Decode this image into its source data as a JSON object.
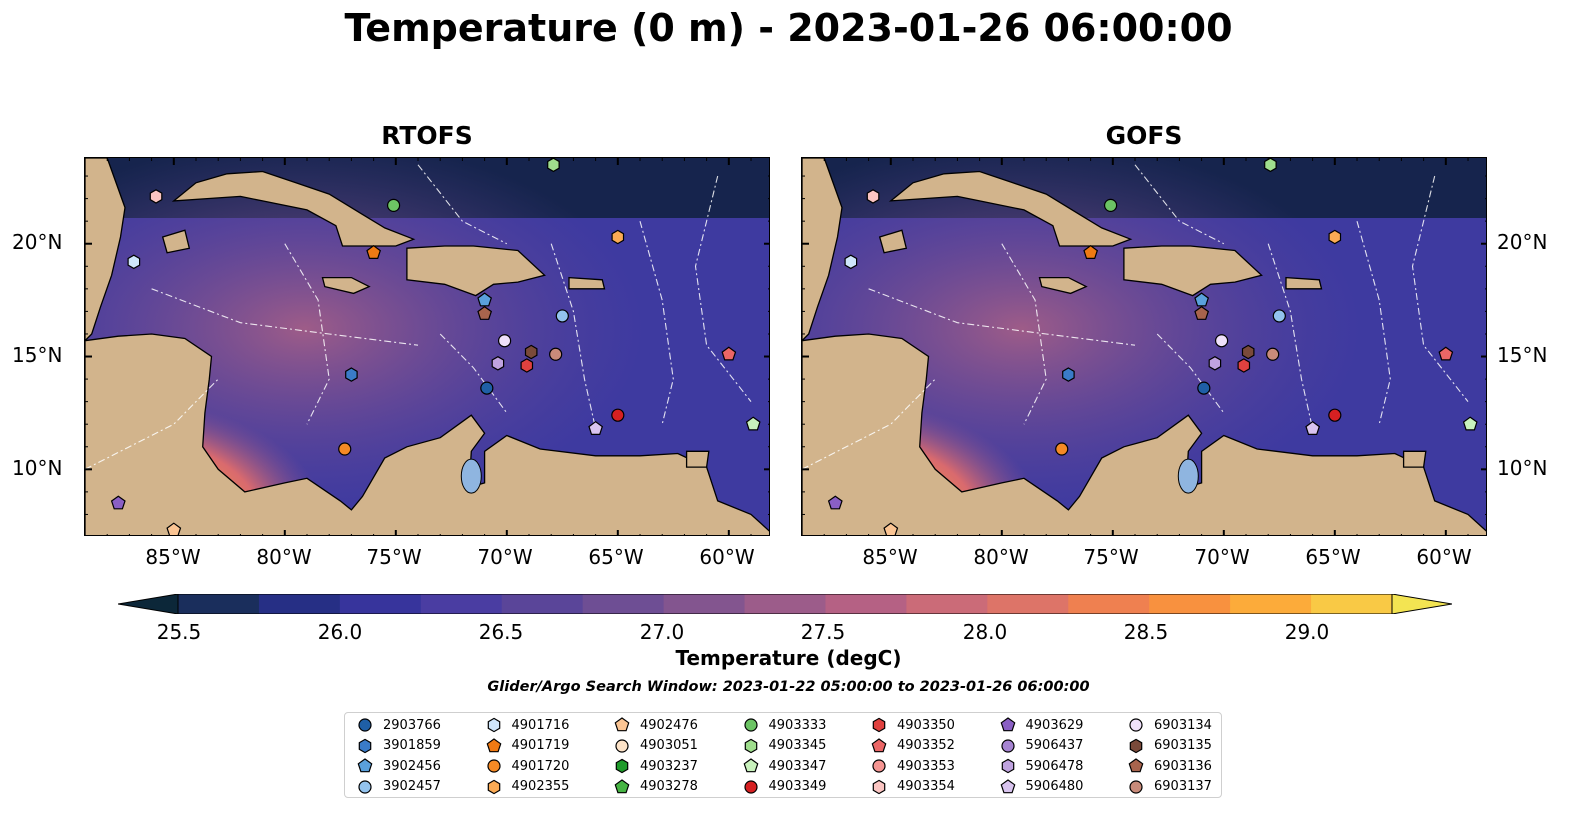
{
  "title": "Temperature (0 m) - 2023-01-26 06:00:00",
  "panels": [
    {
      "title": "RTOFS"
    },
    {
      "title": "GOFS"
    }
  ],
  "lon_ticks": [
    "85°W",
    "80°W",
    "75°W",
    "70°W",
    "65°W",
    "60°W"
  ],
  "lat_ticks": [
    "20°N",
    "15°N",
    "10°N"
  ],
  "colorbar": {
    "label": "Temperature (degC)",
    "ticks": [
      "25.5",
      "26.0",
      "26.5",
      "27.0",
      "27.5",
      "28.0",
      "28.5",
      "29.0"
    ],
    "colors": [
      "#0c2739",
      "#1a2e5c",
      "#262f85",
      "#37349c",
      "#4a3da2",
      "#5a4599",
      "#6e4e94",
      "#83558f",
      "#9c5c8a",
      "#b56184",
      "#cb6b78",
      "#dd7468",
      "#ef8050",
      "#f8913f",
      "#fcab3a",
      "#f9c945",
      "#f3e452"
    ]
  },
  "search_window": "Glider/Argo Search Window: 2023-01-22 05:00:00 to 2023-01-26 06:00:00",
  "legend": [
    {
      "id": "2903766",
      "marker": "circle",
      "color": "#1f5fa6"
    },
    {
      "id": "3901859",
      "marker": "hexagon",
      "color": "#3a7bc8"
    },
    {
      "id": "3902456",
      "marker": "pentagon",
      "color": "#5aa0dc"
    },
    {
      "id": "3902457",
      "marker": "circle",
      "color": "#93c3ee"
    },
    {
      "id": "4901716",
      "marker": "hexagon",
      "color": "#cfe6fb"
    },
    {
      "id": "4901719",
      "marker": "pentagon",
      "color": "#f07a13"
    },
    {
      "id": "4901720",
      "marker": "circle",
      "color": "#f58a25"
    },
    {
      "id": "4902355",
      "marker": "hexagon",
      "color": "#fbab55"
    },
    {
      "id": "4902476",
      "marker": "pentagon",
      "color": "#fbc594"
    },
    {
      "id": "4903051",
      "marker": "circle",
      "color": "#fde3c8"
    },
    {
      "id": "4903237",
      "marker": "hexagon",
      "color": "#1e9a2a"
    },
    {
      "id": "4903278",
      "marker": "pentagon",
      "color": "#46b443"
    },
    {
      "id": "4903333",
      "marker": "circle",
      "color": "#6cc464"
    },
    {
      "id": "4903345",
      "marker": "hexagon",
      "color": "#9fde8d"
    },
    {
      "id": "4903347",
      "marker": "pentagon",
      "color": "#c9f2bd"
    },
    {
      "id": "4903349",
      "marker": "circle",
      "color": "#d62022"
    },
    {
      "id": "4903350",
      "marker": "hexagon",
      "color": "#e0413f"
    },
    {
      "id": "4903352",
      "marker": "pentagon",
      "color": "#eb6666"
    },
    {
      "id": "4903353",
      "marker": "circle",
      "color": "#f59592"
    },
    {
      "id": "4903354",
      "marker": "hexagon",
      "color": "#fbc5c2"
    },
    {
      "id": "4903629",
      "marker": "pentagon",
      "color": "#8a5fc4"
    },
    {
      "id": "5906437",
      "marker": "circle",
      "color": "#a684d2"
    },
    {
      "id": "5906478",
      "marker": "hexagon",
      "color": "#c0a3e0"
    },
    {
      "id": "5906480",
      "marker": "pentagon",
      "color": "#d9c4ef"
    },
    {
      "id": "6903134",
      "marker": "circle",
      "color": "#efe0fa"
    },
    {
      "id": "6903135",
      "marker": "hexagon",
      "color": "#7a4a3a"
    },
    {
      "id": "6903136",
      "marker": "pentagon",
      "color": "#a8644d"
    },
    {
      "id": "6903137",
      "marker": "circle",
      "color": "#c98b7a"
    }
  ],
  "floats": [
    {
      "id": "4903345",
      "lon": -67.9,
      "lat": 23.5
    },
    {
      "id": "4903333",
      "lon": -75.1,
      "lat": 21.7
    },
    {
      "id": "4903354",
      "lon": -85.8,
      "lat": 22.1
    },
    {
      "id": "4901716",
      "lon": -86.8,
      "lat": 19.2
    },
    {
      "id": "4901719",
      "lon": -76.0,
      "lat": 19.6
    },
    {
      "id": "4902355",
      "lon": -65.0,
      "lat": 20.3
    },
    {
      "id": "3902456",
      "lon": -71.0,
      "lat": 17.5
    },
    {
      "id": "6903136",
      "lon": -71.0,
      "lat": 16.9
    },
    {
      "id": "3902457",
      "lon": -67.5,
      "lat": 16.8
    },
    {
      "id": "6903134",
      "lon": -70.1,
      "lat": 15.7
    },
    {
      "id": "6903135",
      "lon": -68.9,
      "lat": 15.2
    },
    {
      "id": "6903137",
      "lon": -67.8,
      "lat": 15.1
    },
    {
      "id": "5906478",
      "lon": -70.4,
      "lat": 14.7
    },
    {
      "id": "4903350",
      "lon": -69.1,
      "lat": 14.6
    },
    {
      "id": "4903352",
      "lon": -60.0,
      "lat": 15.1
    },
    {
      "id": "3901859",
      "lon": -77.0,
      "lat": 14.2
    },
    {
      "id": "2903766",
      "lon": -70.9,
      "lat": 13.6
    },
    {
      "id": "4903349",
      "lon": -65.0,
      "lat": 12.4
    },
    {
      "id": "5906480",
      "lon": -66.0,
      "lat": 11.8
    },
    {
      "id": "4903347",
      "lon": -58.9,
      "lat": 12.0
    },
    {
      "id": "4901720",
      "lon": -77.3,
      "lat": 10.9
    },
    {
      "id": "4903629",
      "lon": -87.5,
      "lat": 8.5
    },
    {
      "id": "4902476",
      "lon": -85.0,
      "lat": 7.3
    }
  ]
}
